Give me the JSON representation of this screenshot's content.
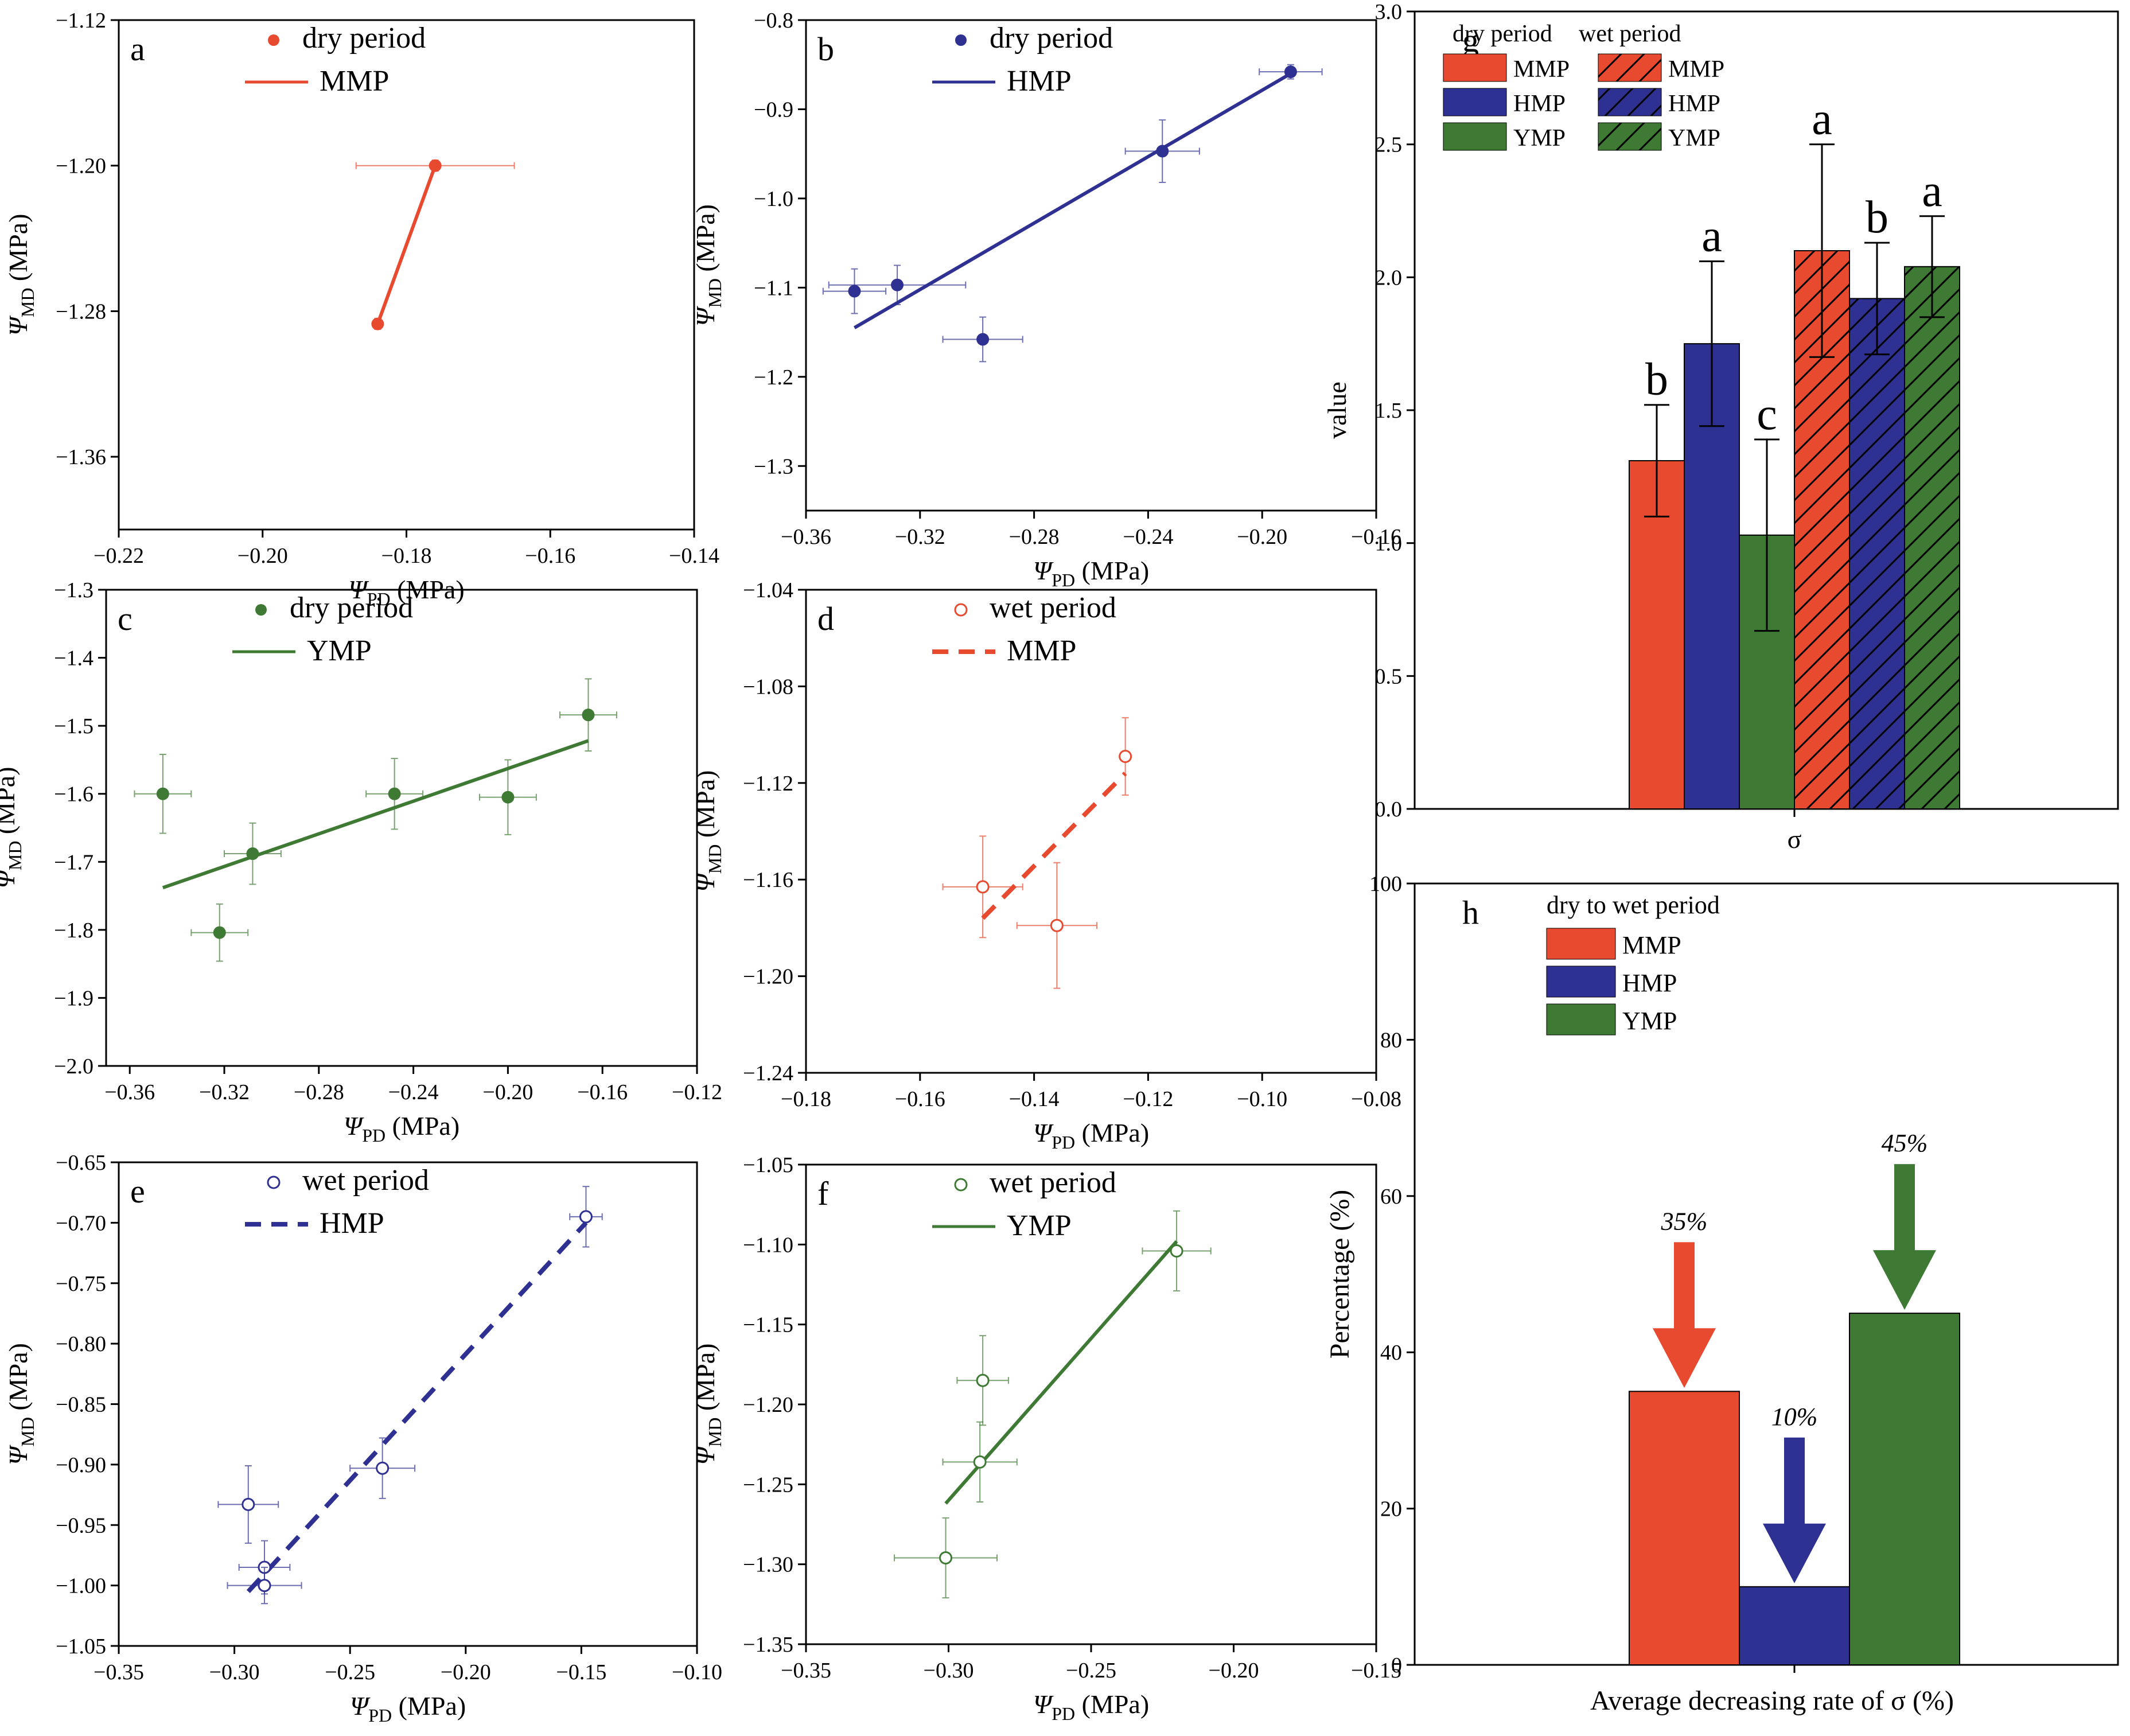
{
  "colors": {
    "MMP": "#e84a2f",
    "HMP": "#2e3192",
    "YMP": "#3f7a35",
    "frame": "#000000"
  },
  "chart_data": [
    {
      "id": "a",
      "type": "scatter",
      "panel_label": "a",
      "xlabel_main": "Ψ",
      "xlabel_sub": "PD",
      "xlabel_unit": " (MPa)",
      "ylabel_main": "Ψ",
      "ylabel_sub": "MD",
      "ylabel_unit": " (MPa)",
      "xlim": [
        -0.22,
        -0.14
      ],
      "ylim": [
        -1.4,
        -1.12
      ],
      "xticks": [
        -0.22,
        -0.2,
        -0.18,
        -0.16,
        -0.14
      ],
      "xtick_labels": [
        "−0.22",
        "−0.20",
        "−0.18",
        "−0.16",
        "−0.14"
      ],
      "yticks": [
        -1.12,
        -1.2,
        -1.28,
        -1.36
      ],
      "ytick_labels": [
        "−1.12",
        "−1.20",
        "−1.28",
        "−1.36"
      ],
      "legend": {
        "marker_label": "dry period",
        "line_label": "MMP"
      },
      "color_key": "MMP",
      "filled": true,
      "dashed": false,
      "points": [
        {
          "x": -0.176,
          "y": -1.2,
          "xerr": 0.011,
          "yerr": 0.003
        },
        {
          "x": -0.184,
          "y": -1.287,
          "xerr": 0.0,
          "yerr": 0.003
        }
      ],
      "fit": [
        [
          -0.184,
          -1.287
        ],
        [
          -0.176,
          -1.2
        ]
      ]
    },
    {
      "id": "b",
      "type": "scatter",
      "panel_label": "b",
      "xlabel_main": "Ψ",
      "xlabel_sub": "PD",
      "xlabel_unit": " (MPa)",
      "ylabel_main": "Ψ",
      "ylabel_sub": "MD",
      "ylabel_unit": " (MPa)",
      "xlim": [
        -0.36,
        -0.16
      ],
      "ylim": [
        -1.35,
        -0.8
      ],
      "xticks": [
        -0.36,
        -0.32,
        -0.28,
        -0.24,
        -0.2,
        -0.16
      ],
      "xtick_labels": [
        "−0.36",
        "−0.32",
        "−0.28",
        "−0.24",
        "−0.20",
        "−0.16"
      ],
      "yticks": [
        -0.8,
        -0.9,
        -1.0,
        -1.1,
        -1.2,
        -1.3
      ],
      "ytick_labels": [
        "−0.8",
        "−0.9",
        "−1.0",
        "−1.1",
        "−1.2",
        "−1.3"
      ],
      "legend": {
        "marker_label": "dry period",
        "line_label": "HMP"
      },
      "color_key": "HMP",
      "filled": true,
      "dashed": false,
      "points": [
        {
          "x": -0.343,
          "y": -1.104,
          "xerr": 0.011,
          "yerr": 0.025
        },
        {
          "x": -0.328,
          "y": -1.097,
          "xerr": 0.024,
          "yerr": 0.022
        },
        {
          "x": -0.298,
          "y": -1.158,
          "xerr": 0.014,
          "yerr": 0.025
        },
        {
          "x": -0.235,
          "y": -0.947,
          "xerr": 0.013,
          "yerr": 0.035
        },
        {
          "x": -0.19,
          "y": -0.858,
          "xerr": 0.011,
          "yerr": 0.008
        }
      ],
      "fit": [
        [
          -0.343,
          -1.145
        ],
        [
          -0.19,
          -0.86
        ]
      ]
    },
    {
      "id": "c",
      "type": "scatter",
      "panel_label": "c",
      "xlabel_main": "Ψ",
      "xlabel_sub": "PD",
      "xlabel_unit": " (MPa)",
      "ylabel_main": "Ψ",
      "ylabel_sub": "MD",
      "ylabel_unit": " (MPa)",
      "xlim": [
        -0.37,
        -0.12
      ],
      "ylim": [
        -2.0,
        -1.3
      ],
      "xticks": [
        -0.36,
        -0.32,
        -0.28,
        -0.24,
        -0.2,
        -0.16,
        -0.12
      ],
      "xtick_labels": [
        "−0.36",
        "−0.32",
        "−0.28",
        "−0.24",
        "−0.20",
        "−0.16",
        "−0.12"
      ],
      "yticks": [
        -1.3,
        -1.4,
        -1.5,
        -1.6,
        -1.7,
        -1.8,
        -1.9,
        -2.0
      ],
      "ytick_labels": [
        "−1.3",
        "−1.4",
        "−1.5",
        "−1.6",
        "−1.7",
        "−1.8",
        "−1.9",
        "−2.0"
      ],
      "legend": {
        "marker_label": "dry period",
        "line_label": "YMP"
      },
      "color_key": "YMP",
      "filled": true,
      "dashed": false,
      "points": [
        {
          "x": -0.346,
          "y": -1.6,
          "xerr": 0.012,
          "yerr": 0.058
        },
        {
          "x": -0.322,
          "y": -1.804,
          "xerr": 0.012,
          "yerr": 0.042
        },
        {
          "x": -0.308,
          "y": -1.688,
          "xerr": 0.012,
          "yerr": 0.045
        },
        {
          "x": -0.248,
          "y": -1.6,
          "xerr": 0.012,
          "yerr": 0.052
        },
        {
          "x": -0.2,
          "y": -1.605,
          "xerr": 0.012,
          "yerr": 0.055
        },
        {
          "x": -0.166,
          "y": -1.484,
          "xerr": 0.012,
          "yerr": 0.053
        }
      ],
      "fit": [
        [
          -0.346,
          -1.738
        ],
        [
          -0.166,
          -1.522
        ]
      ]
    },
    {
      "id": "d",
      "type": "scatter",
      "panel_label": "d",
      "xlabel_main": "Ψ",
      "xlabel_sub": "PD",
      "xlabel_unit": " (MPa)",
      "ylabel_main": "Ψ",
      "ylabel_sub": "MD",
      "ylabel_unit": " (MPa)",
      "xlim": [
        -0.18,
        -0.08
      ],
      "ylim": [
        -1.24,
        -1.04
      ],
      "xticks": [
        -0.18,
        -0.16,
        -0.14,
        -0.12,
        -0.1,
        -0.08
      ],
      "xtick_labels": [
        "−0.18",
        "−0.16",
        "−0.14",
        "−0.12",
        "−0.10",
        "−0.08"
      ],
      "yticks": [
        -1.04,
        -1.08,
        -1.12,
        -1.16,
        -1.2,
        -1.24
      ],
      "ytick_labels": [
        "−1.04",
        "−1.08",
        "−1.12",
        "−1.16",
        "−1.20",
        "−1.24"
      ],
      "legend": {
        "marker_label": "wet period",
        "line_label": "MMP"
      },
      "color_key": "MMP",
      "filled": false,
      "dashed": true,
      "points": [
        {
          "x": -0.149,
          "y": -1.163,
          "xerr": 0.007,
          "yerr": 0.021
        },
        {
          "x": -0.136,
          "y": -1.179,
          "xerr": 0.007,
          "yerr": 0.026
        },
        {
          "x": -0.124,
          "y": -1.109,
          "xerr": 0.0,
          "yerr": 0.016
        }
      ],
      "fit": [
        [
          -0.149,
          -1.176
        ],
        [
          -0.124,
          -1.116
        ]
      ]
    },
    {
      "id": "e",
      "type": "scatter",
      "panel_label": "e",
      "xlabel_main": "Ψ",
      "xlabel_sub": "PD",
      "xlabel_unit": " (MPa)",
      "ylabel_main": "Ψ",
      "ylabel_sub": "MD",
      "ylabel_unit": " (MPa)",
      "xlim": [
        -0.35,
        -0.1
      ],
      "ylim": [
        -1.05,
        -0.65
      ],
      "xticks": [
        -0.35,
        -0.3,
        -0.25,
        -0.2,
        -0.15,
        -0.1
      ],
      "xtick_labels": [
        "−0.35",
        "−0.30",
        "−0.25",
        "−0.20",
        "−0.15",
        "−0.10"
      ],
      "yticks": [
        -0.65,
        -0.7,
        -0.75,
        -0.8,
        -0.85,
        -0.9,
        -0.95,
        -1.0,
        -1.05
      ],
      "ytick_labels": [
        "−0.65",
        "−0.70",
        "−0.75",
        "−0.80",
        "−0.85",
        "−0.90",
        "−0.95",
        "−1.00",
        "−1.05"
      ],
      "legend": {
        "marker_label": "wet period",
        "line_label": "HMP"
      },
      "color_key": "HMP",
      "filled": false,
      "dashed": true,
      "points": [
        {
          "x": -0.294,
          "y": -0.933,
          "xerr": 0.013,
          "yerr": 0.032
        },
        {
          "x": -0.287,
          "y": -0.985,
          "xerr": 0.011,
          "yerr": 0.022
        },
        {
          "x": -0.287,
          "y": -1.0,
          "xerr": 0.016,
          "yerr": 0.015
        },
        {
          "x": -0.236,
          "y": -0.903,
          "xerr": 0.014,
          "yerr": 0.025
        },
        {
          "x": -0.148,
          "y": -0.695,
          "xerr": 0.007,
          "yerr": 0.025
        }
      ],
      "fit": [
        [
          -0.294,
          -1.005
        ],
        [
          -0.148,
          -0.7
        ]
      ]
    },
    {
      "id": "f",
      "type": "scatter",
      "panel_label": "f",
      "xlabel_main": "Ψ",
      "xlabel_sub": "PD",
      "xlabel_unit": " (MPa)",
      "ylabel_main": "Ψ",
      "ylabel_sub": "MD",
      "ylabel_unit": " (MPa)",
      "xlim": [
        -0.35,
        -0.15
      ],
      "ylim": [
        -1.35,
        -1.05
      ],
      "xticks": [
        -0.35,
        -0.3,
        -0.25,
        -0.2,
        -0.15
      ],
      "xtick_labels": [
        "−0.35",
        "−0.30",
        "−0.25",
        "−0.20",
        "−0.15"
      ],
      "yticks": [
        -1.05,
        -1.1,
        -1.15,
        -1.2,
        -1.25,
        -1.3,
        -1.35
      ],
      "ytick_labels": [
        "−1.05",
        "−1.10",
        "−1.15",
        "−1.20",
        "−1.25",
        "−1.30",
        "−1.35"
      ],
      "legend": {
        "marker_label": "wet period",
        "line_label": "YMP"
      },
      "color_key": "YMP",
      "filled": false,
      "dashed": false,
      "points": [
        {
          "x": -0.301,
          "y": -1.296,
          "xerr": 0.018,
          "yerr": 0.025
        },
        {
          "x": -0.289,
          "y": -1.236,
          "xerr": 0.013,
          "yerr": 0.025
        },
        {
          "x": -0.288,
          "y": -1.185,
          "xerr": 0.009,
          "yerr": 0.028
        },
        {
          "x": -0.22,
          "y": -1.104,
          "xerr": 0.012,
          "yerr": 0.025
        }
      ],
      "fit": [
        [
          -0.301,
          -1.262
        ],
        [
          -0.22,
          -1.098
        ]
      ]
    },
    {
      "id": "g",
      "type": "bar",
      "panel_label": "g",
      "xlabel": "σ",
      "ylabel": "value",
      "ylim": [
        0,
        3.0
      ],
      "yticks": [
        0,
        0.5,
        1.0,
        1.5,
        2.0,
        2.5,
        3.0
      ],
      "ytick_labels": [
        "0.0",
        "0.5",
        "1.0",
        "1.5",
        "2.0",
        "2.5",
        "3.0"
      ],
      "legend_title_dry": "dry period",
      "legend_title_wet": "wet period",
      "series": [
        {
          "name": "MMP",
          "period": "dry",
          "color_key": "MMP",
          "hatch": false,
          "value": 1.31,
          "err": 0.21,
          "letter": "b"
        },
        {
          "name": "HMP",
          "period": "dry",
          "color_key": "HMP",
          "hatch": false,
          "value": 1.75,
          "err": 0.31,
          "letter": "a"
        },
        {
          "name": "YMP",
          "period": "dry",
          "color_key": "YMP",
          "hatch": false,
          "value": 1.03,
          "err": 0.36,
          "letter": "c"
        },
        {
          "name": "MMP",
          "period": "wet",
          "color_key": "MMP",
          "hatch": true,
          "value": 2.1,
          "err": 0.4,
          "letter": "a"
        },
        {
          "name": "HMP",
          "period": "wet",
          "color_key": "HMP",
          "hatch": true,
          "value": 1.92,
          "err": 0.21,
          "letter": "b"
        },
        {
          "name": "YMP",
          "period": "wet",
          "color_key": "YMP",
          "hatch": true,
          "value": 2.04,
          "err": 0.19,
          "letter": "a"
        }
      ]
    },
    {
      "id": "h",
      "type": "bar",
      "panel_label": "h",
      "xlabel": "Average decreasing rate of σ (%)",
      "ylabel": "Percentage (%)",
      "ylim": [
        0,
        100
      ],
      "yticks": [
        0,
        20,
        40,
        60,
        80,
        100
      ],
      "ytick_labels": [
        "0",
        "20",
        "40",
        "60",
        "80",
        "100"
      ],
      "legend_title": "dry to wet period",
      "series": [
        {
          "name": "MMP",
          "color_key": "MMP",
          "value": 35,
          "label": "35%"
        },
        {
          "name": "HMP",
          "color_key": "HMP",
          "value": 10,
          "label": "10%"
        },
        {
          "name": "YMP",
          "color_key": "YMP",
          "value": 45,
          "label": "45%"
        }
      ]
    }
  ]
}
